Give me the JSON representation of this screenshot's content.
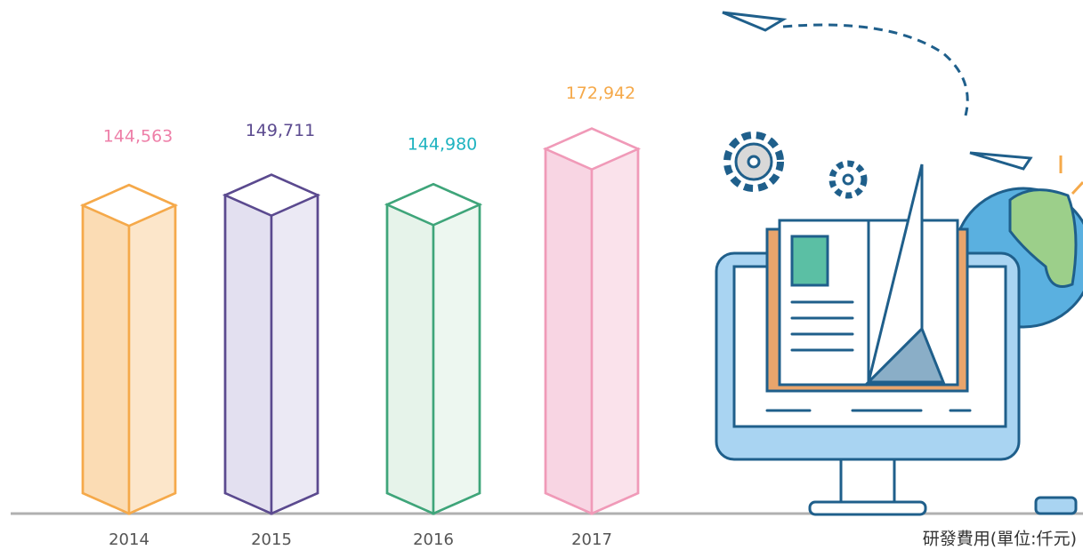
{
  "chart_data": {
    "type": "bar3d",
    "categories": [
      "2014",
      "2015",
      "2016",
      "2017"
    ],
    "values": [
      144563,
      149711,
      144980,
      172942
    ],
    "value_labels": [
      "144,563",
      "149,711",
      "144,980",
      "172,942"
    ],
    "colors": [
      "#f5a94a",
      "#5b4a8f",
      "#3fa57a",
      "#f09ab8"
    ],
    "fill_colors": [
      "#fbdcb4",
      "#e3e0f0",
      "#e6f3ea",
      "#f8d5e3"
    ],
    "label_colors": [
      "#ee7fa8",
      "#5b4a8f",
      "#1fb3c0",
      "#f5a94a"
    ],
    "note": "研發費用(單位:仟元)"
  }
}
